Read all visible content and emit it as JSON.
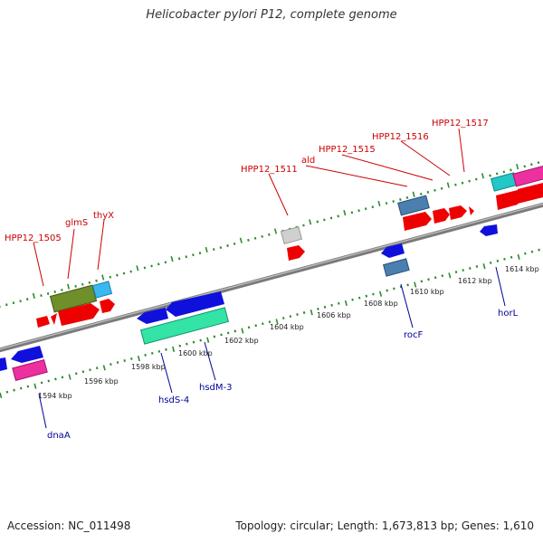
{
  "title": "Helicobacter pylori P12, complete genome",
  "footer": {
    "accession": "Accession: NC_011498",
    "topology": "Topology: circular; Length: 1,673,813 bp; Genes: 1,610"
  },
  "colors": {
    "backbone": "#8a8a8a",
    "tick": "#2e8b2e",
    "label_upper": "#cc0000",
    "label_lower": "#000099"
  },
  "scale_labels": [
    "1594 kbp",
    "1596 kbp",
    "1598 kbp",
    "1600 kbp",
    "1602 kbp",
    "1604 kbp",
    "1606 kbp",
    "1608 kbp",
    "1610 kbp",
    "1612 kbp",
    "1614 kbp"
  ],
  "upper_labels": [
    "HPP12_1505",
    "glmS",
    "thyX",
    "HPP12_1511",
    "ald",
    "HPP12_1515",
    "HPP12_1516",
    "HPP12_1517"
  ],
  "lower_labels": [
    "dnaA",
    "hsdS-4",
    "hsdM-3",
    "rocF",
    "horL"
  ]
}
